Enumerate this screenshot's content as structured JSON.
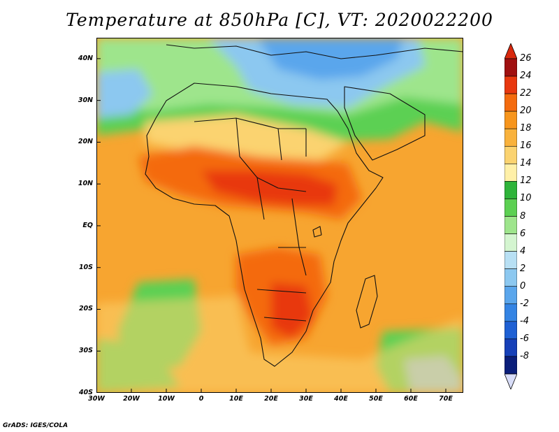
{
  "title": "Temperature at 850hPa [C], VT: 2020022200",
  "credit": "GrADS: IGES/COLA",
  "map": {
    "lat_labels": [
      "40N",
      "30N",
      "20N",
      "10N",
      "EQ",
      "10S",
      "20S",
      "30S",
      "40S"
    ],
    "lon_labels": [
      "30W",
      "20W",
      "10W",
      "0",
      "10E",
      "20E",
      "30E",
      "40E",
      "50E",
      "60E",
      "70E"
    ],
    "lat_values": [
      40,
      30,
      20,
      10,
      0,
      -10,
      -20,
      -30,
      -40
    ],
    "lon_values": [
      -30,
      -20,
      -10,
      0,
      10,
      20,
      30,
      40,
      50,
      60,
      70
    ]
  },
  "colorbar": {
    "labels": [
      "26",
      "24",
      "22",
      "20",
      "18",
      "16",
      "14",
      "12",
      "10",
      "8",
      "6",
      "4",
      "2",
      "0",
      "-2",
      "-4",
      "-6",
      "-8"
    ],
    "levels": [
      26,
      24,
      22,
      20,
      18,
      16,
      14,
      12,
      10,
      8,
      6,
      4,
      2,
      0,
      -2,
      -4,
      -6,
      -8
    ],
    "colors": [
      "#a01010",
      "#e8380f",
      "#f46b0e",
      "#f7951c",
      "#f9b23c",
      "#fbd370",
      "#fff0a8",
      "#2fb43a",
      "#5cd052",
      "#9ee58c",
      "#d4f5d0",
      "#b8e0f4",
      "#8cc8f0",
      "#5aa6ec",
      "#3484e4",
      "#1e60d4",
      "#1640b8",
      "#0a1e7a"
    ],
    "top_arrow_color": "#d8280e",
    "bottom_arrow_color": "#d8ddf8"
  },
  "legend_colors": {
    "ocean_mid": "#f7a530",
    "hot": "#e8430f",
    "cool": "#5cd052",
    "cold": "#5aa6ec"
  }
}
